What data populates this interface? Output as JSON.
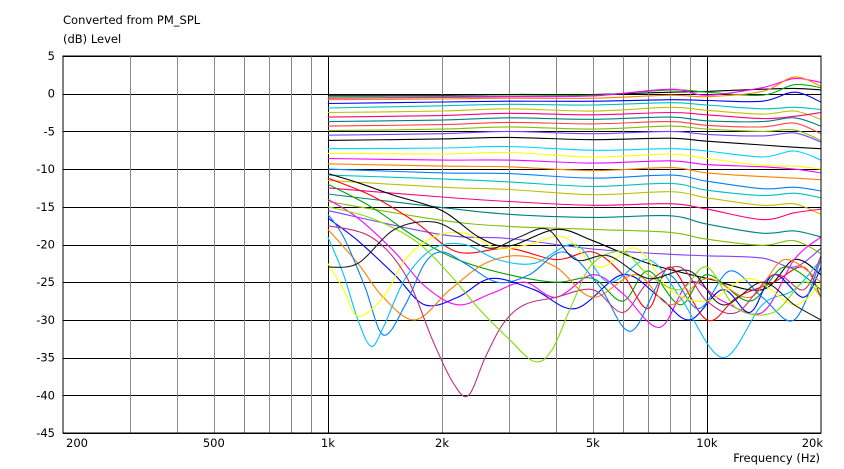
{
  "chart_data": {
    "type": "line",
    "title": "Converted from PM_SPL",
    "ylabel": "(dB)  Level",
    "xlabel": "Frequency  (Hz)",
    "xscale": "log",
    "xlim": [
      200,
      20000
    ],
    "ylim": [
      -45,
      5
    ],
    "grid": true,
    "x_ticks": [
      {
        "value": 200,
        "label": "200"
      },
      {
        "value": 500,
        "label": "500"
      },
      {
        "value": 1000,
        "label": "1k"
      },
      {
        "value": 2000,
        "label": "2k"
      },
      {
        "value": 5000,
        "label": "5k"
      },
      {
        "value": 10000,
        "label": "10k"
      },
      {
        "value": 20000,
        "label": "20k"
      }
    ],
    "y_ticks": [
      5,
      0,
      -5,
      -10,
      -15,
      -20,
      -25,
      -30,
      -35,
      -40,
      -45
    ],
    "series": [
      {
        "color": "#000000",
        "x": [
          1000,
          2000,
          3000,
          5000,
          8000,
          10000,
          14000,
          17000,
          20000
        ],
        "y": [
          -0.2,
          -0.2,
          -0.1,
          -0.1,
          0.2,
          0.3,
          0.6,
          0.7,
          0.5
        ]
      },
      {
        "color": "#00b000",
        "x": [
          1000,
          2000,
          3000,
          5000,
          8000,
          10000,
          14000,
          17000,
          20000
        ],
        "y": [
          -0.4,
          -0.4,
          -0.3,
          -0.2,
          0.5,
          0.2,
          -0.2,
          1.2,
          0.8
        ]
      },
      {
        "color": "#ff00ff",
        "x": [
          1000,
          2000,
          3000,
          5000,
          8000,
          10000,
          14000,
          17000,
          20000
        ],
        "y": [
          -0.6,
          -0.5,
          -0.4,
          -0.3,
          0.6,
          -0.2,
          0.8,
          2.0,
          1.5
        ]
      },
      {
        "color": "#ff8000",
        "x": [
          1000,
          2000,
          3000,
          5000,
          8000,
          10000,
          14000,
          17000,
          20000
        ],
        "y": [
          -0.8,
          -0.7,
          -0.6,
          -0.6,
          -0.2,
          -0.4,
          0.3,
          2.2,
          1.0
        ]
      },
      {
        "color": "#0000ff",
        "x": [
          1000,
          2000,
          3000,
          5000,
          8000,
          10000,
          14000,
          17000,
          20000
        ],
        "y": [
          -1.3,
          -1.1,
          -1.0,
          -1.0,
          -0.8,
          -0.9,
          -1.0,
          0.2,
          -1.1
        ]
      },
      {
        "color": "#00c0c0",
        "x": [
          1000,
          2000,
          3000,
          5000,
          8000,
          10000,
          14000,
          17000,
          20000
        ],
        "y": [
          -1.9,
          -1.6,
          -1.4,
          -1.5,
          -1.2,
          -1.5,
          -2.0,
          -1.8,
          -2.1
        ]
      },
      {
        "color": "#c0c000",
        "x": [
          1000,
          2000,
          3000,
          5000,
          8000,
          10000,
          14000,
          17000,
          20000
        ],
        "y": [
          -2.5,
          -2.3,
          -2.0,
          -2.3,
          -1.8,
          -2.2,
          -2.7,
          -2.3,
          -3.4
        ]
      },
      {
        "color": "#ff0080",
        "x": [
          1000,
          2000,
          3000,
          5000,
          8000,
          10000,
          14000,
          17000,
          20000
        ],
        "y": [
          -3.1,
          -2.9,
          -2.6,
          -2.8,
          -2.5,
          -2.8,
          -3.3,
          -3.0,
          -2.5
        ]
      },
      {
        "color": "#008080",
        "x": [
          1000,
          2000,
          3000,
          5000,
          8000,
          10000,
          14000,
          17000,
          20000
        ],
        "y": [
          -3.7,
          -3.5,
          -3.2,
          -3.4,
          -3.1,
          -3.6,
          -3.7,
          -3.2,
          -4.3
        ]
      },
      {
        "color": "#ff4040",
        "x": [
          1000,
          2000,
          3000,
          5000,
          8000,
          10000,
          14000,
          17000,
          20000
        ],
        "y": [
          -4.3,
          -4.1,
          -3.8,
          -4.0,
          -3.7,
          -4.2,
          -4.4,
          -3.9,
          -5.3
        ]
      },
      {
        "color": "#80c000",
        "x": [
          1000,
          2000,
          3000,
          5000,
          8000,
          10000,
          14000,
          17000,
          20000
        ],
        "y": [
          -4.9,
          -4.7,
          -4.4,
          -4.7,
          -4.3,
          -4.7,
          -5.0,
          -4.8,
          -6.2
        ]
      },
      {
        "color": "#8040ff",
        "x": [
          1000,
          2000,
          3000,
          5000,
          8000,
          10000,
          14000,
          17000,
          20000
        ],
        "y": [
          -5.5,
          -5.3,
          -5.0,
          -5.3,
          -5.0,
          -5.4,
          -5.6,
          -5.2,
          -6.4
        ]
      },
      {
        "color": "#000000",
        "x": [
          1000,
          2000,
          3000,
          5000,
          8000,
          10000,
          14000,
          17000,
          20000
        ],
        "y": [
          -6.2,
          -6.0,
          -5.8,
          -6.1,
          -5.9,
          -6.3,
          -6.8,
          -7.1,
          -7.3
        ]
      },
      {
        "color": "#00d0ff",
        "x": [
          1000,
          2000,
          3000,
          5000,
          8000,
          10000,
          14000,
          17000,
          20000
        ],
        "y": [
          -7.3,
          -7.2,
          -7.0,
          -7.5,
          -7.3,
          -7.6,
          -8.4,
          -7.6,
          -8.8
        ]
      },
      {
        "color": "#ffff00",
        "x": [
          1000,
          2000,
          3000,
          5000,
          8000,
          10000,
          14000,
          17000,
          20000
        ],
        "y": [
          -7.9,
          -8.0,
          -7.8,
          -8.4,
          -8.0,
          -8.6,
          -9.5,
          -9.6,
          -10.0
        ]
      },
      {
        "color": "#ff00ff",
        "x": [
          1000,
          2000,
          3000,
          5000,
          8000,
          10000,
          14000,
          17000,
          20000
        ],
        "y": [
          -8.6,
          -8.8,
          -8.8,
          -9.2,
          -8.9,
          -9.4,
          -9.7,
          -10.0,
          -10.5
        ]
      },
      {
        "color": "#ff8000",
        "x": [
          1000,
          2000,
          3000,
          5000,
          8000,
          10000,
          14000,
          17000,
          20000
        ],
        "y": [
          -9.3,
          -9.6,
          -9.7,
          -10.2,
          -9.8,
          -10.5,
          -11.0,
          -11.2,
          -11.4
        ]
      },
      {
        "color": "#0080ff",
        "x": [
          1000,
          2000,
          3000,
          5000,
          8000,
          10000,
          14000,
          17000,
          20000
        ],
        "y": [
          -10.0,
          -10.5,
          -10.6,
          -11.2,
          -10.8,
          -11.6,
          -12.6,
          -12.4,
          -12.9
        ]
      },
      {
        "color": "#00c0c0",
        "x": [
          1000,
          2000,
          3000,
          5000,
          8000,
          10000,
          14000,
          17000,
          20000
        ],
        "y": [
          -10.8,
          -11.3,
          -11.7,
          -12.3,
          -11.9,
          -12.8,
          -13.5,
          -13.2,
          -13.8
        ]
      },
      {
        "color": "#c0c000",
        "x": [
          1000,
          2000,
          3000,
          5000,
          8000,
          10000,
          14000,
          17000,
          20000
        ],
        "y": [
          -11.5,
          -12.4,
          -12.7,
          -13.4,
          -13.0,
          -13.8,
          -14.8,
          -14.6,
          -16.0
        ]
      },
      {
        "color": "#ff0080",
        "x": [
          1000,
          2000,
          3000,
          5000,
          8000,
          10000,
          14000,
          17000,
          20000
        ],
        "y": [
          -12.5,
          -13.7,
          -14.3,
          -14.8,
          -14.6,
          -15.3,
          -16.7,
          -15.8,
          -15.3
        ]
      },
      {
        "color": "#008080",
        "x": [
          1000,
          2000,
          3000,
          5000,
          8000,
          10000,
          14000,
          17000,
          20000
        ],
        "y": [
          -13.3,
          -15.1,
          -16.0,
          -16.4,
          -16.2,
          -17.3,
          -18.5,
          -18.2,
          -19.0
        ]
      },
      {
        "color": "#80c000",
        "x": [
          1000,
          2000,
          3000,
          5000,
          8000,
          10000,
          14000,
          17000,
          20000
        ],
        "y": [
          -14.3,
          -16.8,
          -17.6,
          -18.0,
          -18.4,
          -19.3,
          -20.1,
          -19.5,
          -21.2
        ]
      },
      {
        "color": "#8040ff",
        "x": [
          1000,
          2000,
          3000,
          5000,
          8000,
          10000,
          14000,
          17000,
          20000
        ],
        "y": [
          -15.5,
          -18.7,
          -19.2,
          -20.6,
          -21.3,
          -21.5,
          -21.8,
          -23.0,
          -20.5
        ]
      },
      {
        "color": "#000000",
        "x": [
          1000,
          1200,
          1500,
          2000,
          2500,
          3000,
          4000,
          5000,
          7000,
          10000,
          14000,
          17000,
          20000
        ],
        "y": [
          -10.6,
          -11.8,
          -13.5,
          -15.5,
          -19.0,
          -20.2,
          -18.0,
          -19.5,
          -22.5,
          -24.5,
          -26.0,
          -22.0,
          -24.0
        ]
      },
      {
        "color": "#ff0000",
        "x": [
          1000,
          1300,
          1700,
          2200,
          3000,
          4000,
          5000,
          6000,
          7000,
          8000,
          10000,
          12000,
          15000,
          18000,
          20000
        ],
        "y": [
          -11.2,
          -13.5,
          -17.0,
          -21.0,
          -20.5,
          -22.0,
          -21.0,
          -24.0,
          -28.5,
          -23.0,
          -30.0,
          -27.0,
          -25.0,
          -23.0,
          -27.0
        ]
      },
      {
        "color": "#00a000",
        "x": [
          1000,
          1300,
          1700,
          2200,
          3000,
          4000,
          5000,
          6000,
          7000,
          8500,
          10000,
          13000,
          16000,
          20000
        ],
        "y": [
          -12.0,
          -15.0,
          -19.0,
          -22.0,
          -24.0,
          -25.0,
          -24.5,
          -27.5,
          -23.5,
          -28.0,
          -24.0,
          -27.5,
          -23.0,
          -26.0
        ]
      },
      {
        "color": "#ff00ff",
        "x": [
          1000,
          1200,
          1500,
          1800,
          2200,
          2700,
          3300,
          4000,
          5000,
          6000,
          7500,
          9000,
          11000,
          14000,
          17000,
          20000
        ],
        "y": [
          -14.0,
          -16.5,
          -21.0,
          -25.5,
          -28.0,
          -26.5,
          -25.0,
          -27.0,
          -24.0,
          -26.5,
          -31.0,
          -25.0,
          -27.5,
          -29.0,
          -22.0,
          -19.0
        ]
      },
      {
        "color": "#0000ff",
        "x": [
          1000,
          1200,
          1500,
          1800,
          2200,
          2700,
          3500,
          4500,
          6000,
          7500,
          9000,
          11000,
          13000,
          15000,
          18000,
          20000
        ],
        "y": [
          -16.5,
          -19.5,
          -24.0,
          -28.0,
          -27.0,
          -24.5,
          -26.0,
          -28.5,
          -24.0,
          -27.0,
          -30.0,
          -26.0,
          -29.0,
          -24.0,
          -27.0,
          -23.0
        ]
      },
      {
        "color": "#ff8000",
        "x": [
          1000,
          1200,
          1400,
          1700,
          2100,
          2600,
          3200,
          4000,
          5000,
          6500,
          8000,
          10000,
          13000,
          16000,
          20000
        ],
        "y": [
          -18.0,
          -22.5,
          -27.0,
          -30.0,
          -26.0,
          -22.5,
          -21.5,
          -23.0,
          -27.0,
          -24.0,
          -28.0,
          -24.5,
          -27.0,
          -22.0,
          -25.0
        ]
      },
      {
        "color": "#0080ff",
        "x": [
          1000,
          1100,
          1250,
          1400,
          1600,
          1800,
          2000,
          2300,
          2800,
          3400,
          4200,
          5200,
          6300,
          7800,
          9500,
          11500,
          14000,
          17000,
          20000
        ],
        "y": [
          -16.0,
          -19.0,
          -25.5,
          -32.0,
          -28.0,
          -22.5,
          -21.0,
          -22.5,
          -25.0,
          -24.0,
          -21.0,
          -25.5,
          -31.5,
          -24.0,
          -28.5,
          -23.5,
          -27.0,
          -30.0,
          -22.0
        ]
      },
      {
        "color": "#00c0ff",
        "x": [
          1000,
          1100,
          1200,
          1300,
          1400,
          1600,
          1900,
          2300,
          2800,
          3500,
          4500,
          5500,
          7000,
          8500,
          11000,
          14000,
          17000,
          20000
        ],
        "y": [
          -19.0,
          -24.0,
          -30.0,
          -33.5,
          -31.0,
          -24.5,
          -20.5,
          -20.0,
          -22.0,
          -22.5,
          -20.0,
          -25.0,
          -22.0,
          -27.0,
          -35.0,
          -28.0,
          -26.0,
          -22.0
        ]
      },
      {
        "color": "#ffff00",
        "x": [
          1000,
          1100,
          1200,
          1400,
          1600,
          1900,
          2300,
          2800,
          3400,
          4200,
          5200,
          6500,
          8000,
          10000,
          13000,
          17000,
          20000
        ],
        "y": [
          -22.5,
          -26.0,
          -29.5,
          -27.0,
          -22.0,
          -19.0,
          -18.5,
          -20.5,
          -20.0,
          -19.0,
          -23.0,
          -20.5,
          -26.0,
          -27.5,
          -24.5,
          -28.0,
          -25.0
        ]
      },
      {
        "color": "#c03080",
        "x": [
          1000,
          1300,
          1600,
          1900,
          2150,
          2350,
          2600,
          2900,
          3300,
          4000,
          5000,
          6000,
          7000,
          8500,
          10000,
          12000,
          15000,
          18000,
          20000
        ],
        "y": [
          -17.5,
          -19.0,
          -24.0,
          -33.0,
          -38.5,
          -40.0,
          -35.0,
          -30.5,
          -28.0,
          -27.0,
          -26.0,
          -29.0,
          -25.0,
          -23.0,
          -27.5,
          -29.0,
          -24.0,
          -26.0,
          -21.5
        ]
      },
      {
        "color": "#80e000",
        "x": [
          1000,
          1300,
          1700,
          2100,
          2500,
          3000,
          3500,
          3900,
          4400,
          5000,
          6000,
          7000,
          8500,
          10000,
          12000,
          15000,
          18000,
          20000
        ],
        "y": [
          -15.0,
          -16.5,
          -19.5,
          -24.0,
          -28.5,
          -32.5,
          -35.5,
          -34.0,
          -28.0,
          -22.5,
          -21.0,
          -24.0,
          -26.0,
          -23.0,
          -28.5,
          -29.0,
          -25.0,
          -27.0
        ]
      },
      {
        "color": "#202020",
        "x": [
          1000,
          1200,
          1500,
          1900,
          2300,
          2700,
          3200,
          3800,
          4500,
          5500,
          7000,
          9000,
          11000,
          14000,
          17000,
          20000
        ],
        "y": [
          -23.0,
          -22.5,
          -18.0,
          -17.0,
          -19.0,
          -20.5,
          -19.0,
          -18.0,
          -22.0,
          -21.5,
          -24.5,
          -23.5,
          -28.0,
          -25.0,
          -28.0,
          -30.0
        ]
      }
    ]
  }
}
